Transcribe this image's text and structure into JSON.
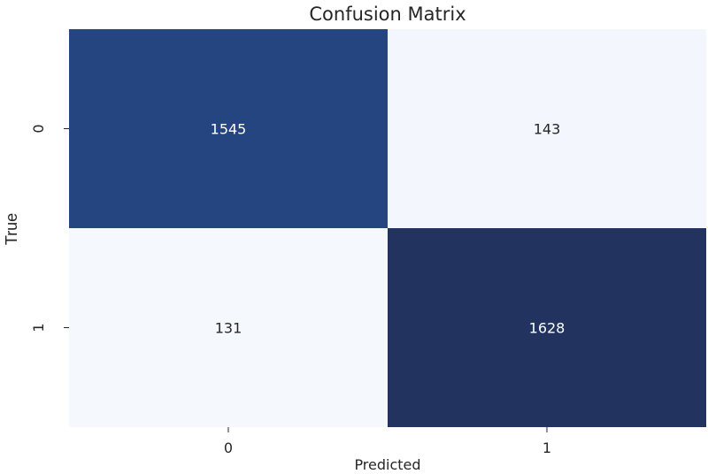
{
  "chart_data": {
    "type": "heatmap",
    "title": "Confusion Matrix",
    "xlabel": "Predicted",
    "ylabel": "True",
    "x_categories": [
      "0",
      "1"
    ],
    "y_categories": [
      "0",
      "1"
    ],
    "values": [
      [
        1545,
        143
      ],
      [
        131,
        1628
      ]
    ],
    "colormap": "Blues",
    "colorbar": false
  },
  "colors": {
    "high": "#23335f",
    "mid_high": "#23447e",
    "low": "#f5f9fe",
    "text_dark_cell": "#ffffff",
    "text_light_cell": "#262626"
  }
}
